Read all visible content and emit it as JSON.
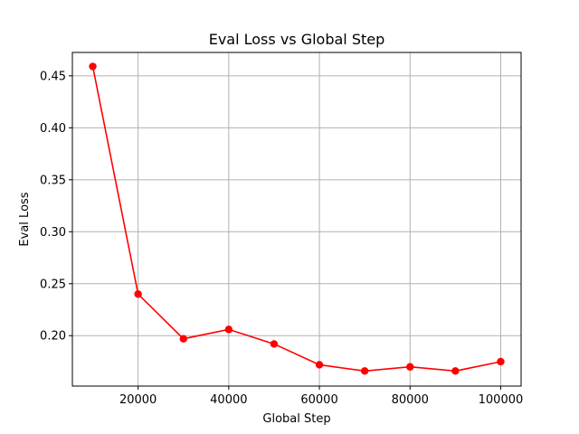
{
  "chart_data": {
    "type": "line",
    "title": "Eval Loss vs Global Step",
    "xlabel": "Global Step",
    "ylabel": "Eval Loss",
    "x": [
      10000,
      20000,
      30000,
      40000,
      50000,
      60000,
      70000,
      80000,
      90000,
      100000
    ],
    "series": [
      {
        "values": [
          0.459,
          0.24,
          0.197,
          0.206,
          0.192,
          0.172,
          0.166,
          0.17,
          0.166,
          0.175
        ],
        "color": "#ff0000",
        "marker": "circle"
      }
    ],
    "xlim": [
      5500,
      104500
    ],
    "ylim": [
      0.1515,
      0.4725
    ],
    "xticks": [
      20000,
      40000,
      60000,
      80000,
      100000
    ],
    "xtick_labels": [
      "20000",
      "40000",
      "60000",
      "80000",
      "100000"
    ],
    "yticks": [
      0.2,
      0.25,
      0.3,
      0.35,
      0.4,
      0.45
    ],
    "ytick_labels": [
      "0.20",
      "0.25",
      "0.30",
      "0.35",
      "0.40",
      "0.45"
    ],
    "grid": true
  }
}
